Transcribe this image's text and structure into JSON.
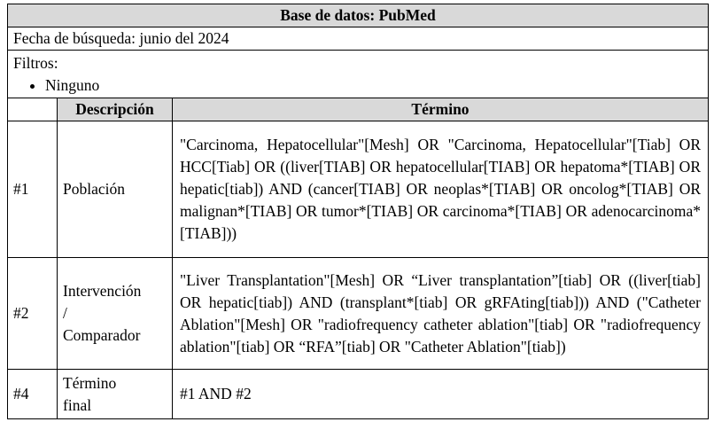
{
  "header": {
    "title": "Base de datos: PubMed"
  },
  "date": "Fecha de búsqueda: junio del 2024",
  "filters": {
    "label": "Filtros:",
    "items": [
      "Ninguno"
    ]
  },
  "table": {
    "columns": [
      "Descripción",
      "Término"
    ],
    "rows": [
      {
        "id": "#1",
        "description": [
          "Población"
        ],
        "term": "\"Carcinoma, Hepatocellular\"[Mesh] OR \"Carcinoma, Hepatocellular\"[Tiab] OR HCC[Tiab] OR ((liver[TIAB] OR hepatocellular[TIAB] OR hepatoma*[TIAB] OR hepatic[tiab]) AND (cancer[TIAB] OR neoplas*[TIAB] OR oncolog*[TIAB] OR malignan*[TIAB] OR tumor*[TIAB] OR carcinoma*[TIAB] OR adenocarcinoma*[TIAB]))"
      },
      {
        "id": "#2",
        "description": [
          "Intervención",
          "/",
          "Comparador"
        ],
        "term": "\"Liver Transplantation\"[Mesh] OR “Liver transplantation”[tiab] OR ((liver[tiab] OR hepatic[tiab]) AND (transplant*[tiab] OR gRFAting[tiab])) AND (\"Catheter Ablation\"[Mesh] OR \"radiofrequency catheter ablation\"[tiab] OR \"radiofrequency ablation\"[tiab] OR “RFA”[tiab] OR \"Catheter Ablation\"[tiab])"
      },
      {
        "id": "#4",
        "description": [
          "Término",
          "final"
        ],
        "term": "#1 AND #2"
      }
    ]
  }
}
